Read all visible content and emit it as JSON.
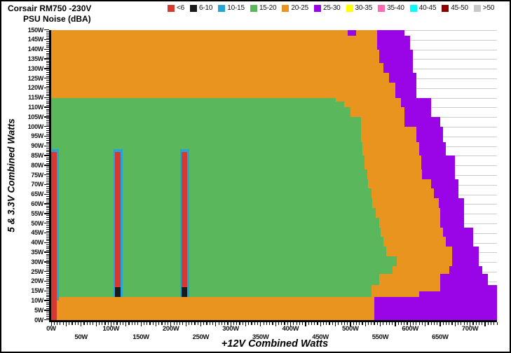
{
  "header": {
    "title_line1": "Corsair RM750 -230V",
    "title_line2": "PSU Noise (dBA)"
  },
  "legend": {
    "items": [
      {
        "label": "<6",
        "color": "#D63832"
      },
      {
        "label": "6-10",
        "color": "#1A1A1A"
      },
      {
        "label": "10-15",
        "color": "#25A5D5"
      },
      {
        "label": "15-20",
        "color": "#5BB75B"
      },
      {
        "label": "20-25",
        "color": "#E8941F"
      },
      {
        "label": "25-30",
        "color": "#9A05E8"
      },
      {
        "label": "30-35",
        "color": "#FFFF00"
      },
      {
        "label": "35-40",
        "color": "#FF69B4"
      },
      {
        "label": "40-45",
        "color": "#00FFFF"
      },
      {
        "label": "45-50",
        "color": "#8B0000"
      },
      {
        "label": ">50",
        "color": "#C8C8C8"
      }
    ]
  },
  "chart_data": {
    "type": "heatmap",
    "title": "Corsair RM750 -230V PSU Noise (dBA)",
    "xlabel": "+12V Combined Watts",
    "ylabel": "5 & 3.3V Combined Watts",
    "x_range": [
      0,
      745
    ],
    "y_range": [
      0,
      150
    ],
    "x_tick_labels": [
      "0W",
      "50W",
      "100W",
      "150W",
      "200W",
      "250W",
      "300W",
      "350W",
      "400W",
      "450W",
      "500W",
      "550W",
      "600W",
      "650W",
      "700W"
    ],
    "y_tick_labels": [
      "0W",
      "5W",
      "10W",
      "15W",
      "20W",
      "25W",
      "30W",
      "35W",
      "40W",
      "45W",
      "50W",
      "55W",
      "60W",
      "65W",
      "70W",
      "75W",
      "80W",
      "85W",
      "90W",
      "95W",
      "100W",
      "105W",
      "110W",
      "115W",
      "120W",
      "125W",
      "130W",
      "135W",
      "140W",
      "145W",
      "150W"
    ],
    "value_unit": "dBA",
    "grid": true,
    "legend_position": "top",
    "bands_note": "horizontal bands [yFromW, yToW, segments[binLabel, xFromW, xToW]]; uncovered area is white (no data)",
    "bands": [
      [
        0,
        12,
        [
          [
            "20-25",
            0,
            540
          ],
          [
            "25-30",
            540,
            745
          ]
        ]
      ],
      [
        12,
        15,
        [
          [
            "15-20",
            0,
            535
          ],
          [
            "20-25",
            535,
            615
          ],
          [
            "25-30",
            615,
            745
          ]
        ]
      ],
      [
        15,
        18,
        [
          [
            "15-20",
            0,
            535
          ],
          [
            "20-25",
            535,
            650
          ],
          [
            "25-30",
            650,
            745
          ]
        ]
      ],
      [
        18,
        24,
        [
          [
            "15-20",
            0,
            548
          ],
          [
            "20-25",
            548,
            650
          ],
          [
            "25-30",
            650,
            730
          ]
        ]
      ],
      [
        24,
        28,
        [
          [
            "15-20",
            0,
            570
          ],
          [
            "20-25",
            570,
            665
          ],
          [
            "25-30",
            665,
            720
          ]
        ]
      ],
      [
        28,
        33,
        [
          [
            "15-20",
            0,
            578
          ],
          [
            "20-25",
            578,
            670
          ],
          [
            "25-30",
            670,
            715
          ]
        ]
      ],
      [
        33,
        38,
        [
          [
            "15-20",
            0,
            560
          ],
          [
            "20-25",
            560,
            670
          ],
          [
            "25-30",
            670,
            715
          ]
        ]
      ],
      [
        38,
        43,
        [
          [
            "15-20",
            0,
            555
          ],
          [
            "20-25",
            555,
            660
          ],
          [
            "25-30",
            660,
            705
          ]
        ]
      ],
      [
        43,
        48,
        [
          [
            "15-20",
            0,
            550
          ],
          [
            "20-25",
            550,
            655
          ],
          [
            "25-30",
            655,
            705
          ]
        ]
      ],
      [
        48,
        53,
        [
          [
            "15-20",
            0,
            548
          ],
          [
            "20-25",
            548,
            650
          ],
          [
            "25-30",
            650,
            690
          ]
        ]
      ],
      [
        53,
        58,
        [
          [
            "15-20",
            0,
            542
          ],
          [
            "20-25",
            542,
            650
          ],
          [
            "25-30",
            650,
            690
          ]
        ]
      ],
      [
        58,
        63,
        [
          [
            "15-20",
            0,
            537
          ],
          [
            "20-25",
            537,
            648
          ],
          [
            "25-30",
            648,
            690
          ]
        ]
      ],
      [
        63,
        68,
        [
          [
            "15-20",
            0,
            535
          ],
          [
            "20-25",
            535,
            640
          ],
          [
            "25-30",
            640,
            680
          ]
        ]
      ],
      [
        68,
        73,
        [
          [
            "15-20",
            0,
            530
          ],
          [
            "20-25",
            530,
            635
          ],
          [
            "25-30",
            635,
            680
          ]
        ]
      ],
      [
        73,
        78,
        [
          [
            "15-20",
            0,
            528
          ],
          [
            "20-25",
            528,
            620
          ],
          [
            "25-30",
            620,
            675
          ]
        ]
      ],
      [
        78,
        85,
        [
          [
            "15-20",
            0,
            524
          ],
          [
            "20-25",
            524,
            618
          ],
          [
            "25-30",
            618,
            675
          ]
        ]
      ],
      [
        85,
        92,
        [
          [
            "15-20",
            0,
            520
          ],
          [
            "20-25",
            520,
            615
          ],
          [
            "25-30",
            615,
            660
          ]
        ]
      ],
      [
        92,
        100,
        [
          [
            "15-20",
            0,
            518
          ],
          [
            "20-25",
            518,
            610
          ],
          [
            "25-30",
            610,
            655
          ]
        ]
      ],
      [
        100,
        105,
        [
          [
            "15-20",
            0,
            518
          ],
          [
            "20-25",
            518,
            590
          ],
          [
            "25-30",
            590,
            650
          ]
        ]
      ],
      [
        105,
        110,
        [
          [
            "15-20",
            0,
            500
          ],
          [
            "20-25",
            500,
            590
          ],
          [
            "25-30",
            590,
            635
          ]
        ]
      ],
      [
        110,
        113,
        [
          [
            "15-20",
            0,
            490
          ],
          [
            "20-25",
            490,
            585
          ],
          [
            "25-30",
            585,
            635
          ]
        ]
      ],
      [
        113,
        115,
        [
          [
            "15-20",
            0,
            475
          ],
          [
            "20-25",
            475,
            585
          ],
          [
            "25-30",
            585,
            635
          ]
        ]
      ],
      [
        115,
        123,
        [
          [
            "20-25",
            0,
            575
          ],
          [
            "25-30",
            575,
            610
          ]
        ]
      ],
      [
        123,
        128,
        [
          [
            "20-25",
            0,
            565
          ],
          [
            "25-30",
            565,
            610
          ]
        ]
      ],
      [
        128,
        133,
        [
          [
            "20-25",
            0,
            555
          ],
          [
            "25-30",
            555,
            605
          ]
        ]
      ],
      [
        133,
        140,
        [
          [
            "20-25",
            0,
            548
          ],
          [
            "25-30",
            548,
            605
          ]
        ]
      ],
      [
        140,
        147,
        [
          [
            "20-25",
            0,
            545
          ],
          [
            "25-30",
            545,
            600
          ]
        ]
      ],
      [
        147,
        150,
        [
          [
            "20-25",
            0,
            495
          ],
          [
            "25-30",
            495,
            510
          ],
          [
            "20-25",
            510,
            545
          ],
          [
            "25-30",
            545,
            590
          ]
        ]
      ]
    ],
    "stripes_note": "measured-load vertical stripes drawn over bands, in watt coords",
    "stripes": [
      {
        "bin": "10-15",
        "x": [
          1,
          13
        ],
        "y": [
          10,
          88.5
        ]
      },
      {
        "bin": "<6",
        "x": [
          0,
          9.5
        ],
        "y": [
          0,
          87
        ]
      },
      {
        "bin": "10-15",
        "x": [
          104,
          120
        ],
        "y": [
          12,
          88.5
        ]
      },
      {
        "bin": "<6",
        "x": [
          107,
          116.5
        ],
        "y": [
          17,
          87
        ]
      },
      {
        "bin": "6-10",
        "x": [
          107,
          116.5
        ],
        "y": [
          12,
          17
        ]
      },
      {
        "bin": "10-15",
        "x": [
          215,
          231
        ],
        "y": [
          12,
          88.5
        ]
      },
      {
        "bin": "<6",
        "x": [
          218,
          227.5
        ],
        "y": [
          17,
          87
        ]
      },
      {
        "bin": "6-10",
        "x": [
          218,
          227.5
        ],
        "y": [
          12,
          17
        ]
      }
    ]
  }
}
